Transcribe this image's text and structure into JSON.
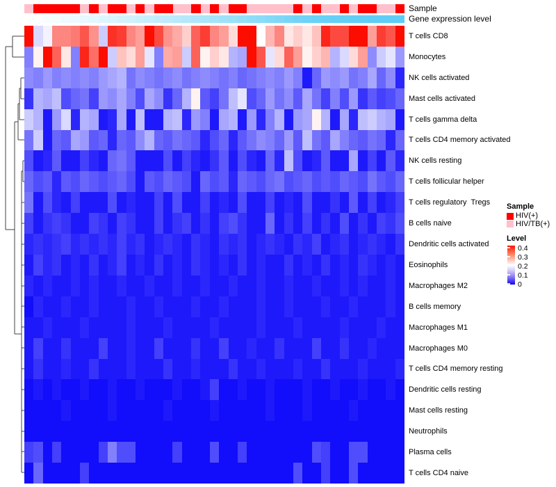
{
  "figure": {
    "annotation_labels": {
      "sample": "Sample",
      "gene_expression": "Gene expression level"
    }
  },
  "legend": {
    "sample": {
      "title": "Sample",
      "entries": [
        {
          "label": "HIV(+)",
          "color": "#FF0000"
        },
        {
          "label": "HIV/TB(+)",
          "color": "#FFC0CB"
        }
      ]
    },
    "level": {
      "title": "Level",
      "ticks": [
        "0.4",
        "0.3",
        "0.2",
        "0.1",
        "0"
      ]
    }
  },
  "chart_data": {
    "type": "heatmap",
    "title": "",
    "rows": [
      "T cells CD8",
      "Monocytes",
      "NK cells activated",
      "Mast cells activated",
      "T cells gamma delta",
      "T cells CD4 memory activated",
      "NK cells resting",
      "T cells follicular helper",
      "T cells regulatory  Tregs",
      "B cells naive",
      "Dendritic cells activated",
      "Eosinophils",
      "Macrophages M2",
      "B cells memory",
      "Macrophages M1",
      "Macrophages M0",
      "T cells CD4 memory resting",
      "Dendritic cells resting",
      "Mast cells resting",
      "Neutrophils",
      "Plasma cells",
      "T cells CD4 naive"
    ],
    "n_columns": 41,
    "row_dendrogram": true,
    "legend_position": "right",
    "colormap": {
      "low": "#0500FA",
      "mid": "#FFFFFF",
      "high": "#FB0D00",
      "domain": [
        0,
        0.2,
        0.4
      ]
    },
    "value_range": [
      0,
      0.45
    ],
    "column_annotations": {
      "sample": [
        "HIV/TB(+)",
        "HIV(+)",
        "HIV(+)",
        "HIV(+)",
        "HIV(+)",
        "HIV(+)",
        "HIV/TB(+)",
        "HIV(+)",
        "HIV/TB(+)",
        "HIV(+)",
        "HIV(+)",
        "HIV/TB(+)",
        "HIV(+)",
        "HIV/TB(+)",
        "HIV(+)",
        "HIV(+)",
        "HIV/TB(+)",
        "HIV/TB(+)",
        "HIV(+)",
        "HIV/TB(+)",
        "HIV(+)",
        "HIV/TB(+)",
        "HIV(+)",
        "HIV(+)",
        "HIV/TB(+)",
        "HIV/TB(+)",
        "HIV/TB(+)",
        "HIV/TB(+)",
        "HIV/TB(+)",
        "HIV(+)",
        "HIV/TB(+)",
        "HIV(+)",
        "HIV/TB(+)",
        "HIV/TB(+)",
        "HIV(+)",
        "HIV/TB(+)",
        "HIV(+)",
        "HIV(+)",
        "HIV/TB(+)",
        "HIV/TB(+)",
        "HIV(+)"
      ],
      "gene_expression_level": [
        0.0,
        0.02,
        0.05,
        0.07,
        0.1,
        0.12,
        0.15,
        0.17,
        0.2,
        0.23,
        0.26,
        0.29,
        0.32,
        0.35,
        0.38,
        0.41,
        0.44,
        0.47,
        0.5,
        0.53,
        0.56,
        0.6,
        0.63,
        0.66,
        0.7,
        0.73,
        0.77,
        0.8,
        0.84,
        0.88,
        0.91,
        0.93,
        0.95,
        0.96,
        0.97,
        0.98,
        0.99,
        1.0,
        1.0,
        1.0,
        1.0
      ],
      "gene_expression_low_color": "#FFFFFF",
      "gene_expression_high_color": "#5FCDF5"
    },
    "matrix": [
      [
        0.42,
        0.17,
        0.19,
        0.3,
        0.3,
        0.31,
        0.34,
        0.29,
        0.16,
        0.37,
        0.36,
        0.3,
        0.28,
        0.42,
        0.35,
        0.29,
        0.27,
        0.24,
        0.33,
        0.36,
        0.3,
        0.28,
        0.23,
        0.45,
        0.45,
        0.2,
        0.26,
        0.3,
        0.22,
        0.24,
        0.22,
        0.25,
        0.38,
        0.35,
        0.35,
        0.43,
        0.43,
        0.28,
        0.36,
        0.34,
        0.44
      ],
      [
        0.1,
        0.21,
        0.42,
        0.33,
        0.22,
        0.1,
        0.38,
        0.32,
        0.42,
        0.16,
        0.25,
        0.23,
        0.28,
        0.18,
        0.1,
        0.27,
        0.28,
        0.16,
        0.33,
        0.21,
        0.24,
        0.22,
        0.14,
        0.13,
        0.42,
        0.34,
        0.18,
        0.23,
        0.33,
        0.28,
        0.21,
        0.24,
        0.26,
        0.14,
        0.17,
        0.23,
        0.28,
        0.11,
        0.16,
        0.18,
        0.12
      ],
      [
        0.11,
        0.1,
        0.12,
        0.1,
        0.11,
        0.1,
        0.11,
        0.1,
        0.12,
        0.13,
        0.14,
        0.09,
        0.11,
        0.1,
        0.09,
        0.1,
        0.11,
        0.09,
        0.1,
        0.11,
        0.1,
        0.09,
        0.1,
        0.08,
        0.09,
        0.1,
        0.11,
        0.1,
        0.12,
        0.1,
        0.02,
        0.08,
        0.12,
        0.11,
        0.12,
        0.09,
        0.1,
        0.13,
        0.08,
        0.11,
        0.03
      ],
      [
        0.04,
        0.14,
        0.13,
        0.15,
        0.06,
        0.08,
        0.09,
        0.05,
        0.12,
        0.11,
        0.13,
        0.1,
        0.06,
        0.13,
        0.11,
        0.04,
        0.08,
        0.14,
        0.21,
        0.07,
        0.05,
        0.09,
        0.15,
        0.18,
        0.06,
        0.08,
        0.12,
        0.09,
        0.11,
        0.07,
        0.13,
        0.09,
        0.05,
        0.1,
        0.06,
        0.12,
        0.04,
        0.07,
        0.05,
        0.06,
        0.08
      ],
      [
        0.16,
        0.14,
        0.02,
        0.12,
        0.17,
        0.03,
        0.14,
        0.13,
        0.02,
        0.03,
        0.13,
        0.02,
        0.15,
        0.02,
        0.02,
        0.14,
        0.15,
        0.03,
        0.12,
        0.1,
        0.02,
        0.13,
        0.14,
        0.02,
        0.12,
        0.03,
        0.1,
        0.14,
        0.02,
        0.12,
        0.13,
        0.21,
        0.14,
        0.02,
        0.13,
        0.03,
        0.15,
        0.16,
        0.14,
        0.13,
        0.02
      ],
      [
        0.09,
        0.16,
        0.02,
        0.08,
        0.07,
        0.13,
        0.12,
        0.07,
        0.08,
        0.03,
        0.08,
        0.07,
        0.11,
        0.14,
        0.08,
        0.07,
        0.09,
        0.08,
        0.07,
        0.03,
        0.06,
        0.08,
        0.03,
        0.07,
        0.09,
        0.11,
        0.1,
        0.08,
        0.12,
        0.07,
        0.15,
        0.09,
        0.07,
        0.13,
        0.1,
        0.08,
        0.07,
        0.09,
        0.08,
        0.03,
        0.08
      ],
      [
        0.06,
        0.02,
        0.03,
        0.07,
        0.02,
        0.02,
        0.05,
        0.03,
        0.02,
        0.08,
        0.09,
        0.07,
        0.02,
        0.02,
        0.02,
        0.06,
        0.02,
        0.05,
        0.03,
        0.02,
        0.04,
        0.07,
        0.02,
        0.06,
        0.03,
        0.02,
        0.08,
        0.03,
        0.15,
        0.06,
        0.02,
        0.03,
        0.07,
        0.02,
        0.02,
        0.13,
        0.02,
        0.05,
        0.02,
        0.07,
        0.03
      ],
      [
        0.08,
        0.06,
        0.07,
        0.03,
        0.07,
        0.06,
        0.08,
        0.07,
        0.06,
        0.07,
        0.08,
        0.06,
        0.02,
        0.07,
        0.06,
        0.08,
        0.07,
        0.06,
        0.02,
        0.08,
        0.06,
        0.07,
        0.03,
        0.08,
        0.07,
        0.06,
        0.08,
        0.09,
        0.06,
        0.07,
        0.08,
        0.06,
        0.07,
        0.06,
        0.08,
        0.07,
        0.06,
        0.09,
        0.07,
        0.06,
        0.08
      ],
      [
        0.09,
        0.02,
        0.06,
        0.03,
        0.02,
        0.05,
        0.02,
        0.02,
        0.02,
        0.06,
        0.02,
        0.03,
        0.02,
        0.02,
        0.05,
        0.02,
        0.06,
        0.02,
        0.02,
        0.05,
        0.02,
        0.03,
        0.02,
        0.06,
        0.02,
        0.02,
        0.05,
        0.02,
        0.03,
        0.02,
        0.06,
        0.02,
        0.02,
        0.04,
        0.02,
        0.07,
        0.02,
        0.05,
        0.02,
        0.03,
        0.05
      ],
      [
        0.05,
        0.02,
        0.04,
        0.05,
        0.04,
        0.02,
        0.02,
        0.05,
        0.04,
        0.02,
        0.05,
        0.04,
        0.02,
        0.02,
        0.05,
        0.02,
        0.04,
        0.05,
        0.02,
        0.04,
        0.02,
        0.05,
        0.06,
        0.04,
        0.02,
        0.02,
        0.08,
        0.02,
        0.04,
        0.02,
        0.05,
        0.02,
        0.04,
        0.02,
        0.06,
        0.02,
        0.04,
        0.02,
        0.05,
        0.04,
        0.06
      ],
      [
        0.03,
        0.04,
        0.03,
        0.04,
        0.05,
        0.03,
        0.04,
        0.03,
        0.04,
        0.03,
        0.05,
        0.03,
        0.04,
        0.02,
        0.03,
        0.04,
        0.03,
        0.02,
        0.04,
        0.03,
        0.02,
        0.04,
        0.03,
        0.04,
        0.02,
        0.03,
        0.04,
        0.03,
        0.02,
        0.04,
        0.03,
        0.05,
        0.02,
        0.03,
        0.04,
        0.02,
        0.03,
        0.04,
        0.03,
        0.02,
        0.04
      ],
      [
        0.02,
        0.05,
        0.03,
        0.04,
        0.02,
        0.03,
        0.02,
        0.04,
        0.02,
        0.03,
        0.05,
        0.02,
        0.03,
        0.02,
        0.04,
        0.02,
        0.03,
        0.02,
        0.04,
        0.03,
        0.02,
        0.03,
        0.02,
        0.04,
        0.02,
        0.03,
        0.02,
        0.02,
        0.04,
        0.02,
        0.03,
        0.02,
        0.04,
        0.02,
        0.03,
        0.02,
        0.04,
        0.03,
        0.02,
        0.03,
        0.02
      ],
      [
        0.03,
        0.02,
        0.03,
        0.02,
        0.02,
        0.03,
        0.02,
        0.03,
        0.02,
        0.02,
        0.03,
        0.02,
        0.02,
        0.03,
        0.02,
        0.02,
        0.03,
        0.02,
        0.02,
        0.03,
        0.02,
        0.02,
        0.03,
        0.02,
        0.02,
        0.03,
        0.02,
        0.02,
        0.03,
        0.02,
        0.02,
        0.03,
        0.02,
        0.02,
        0.03,
        0.02,
        0.03,
        0.02,
        0.02,
        0.03,
        0.02
      ],
      [
        0.01,
        0.03,
        0.02,
        0.02,
        0.03,
        0.02,
        0.02,
        0.03,
        0.02,
        0.02,
        0.02,
        0.03,
        0.02,
        0.02,
        0.03,
        0.02,
        0.02,
        0.02,
        0.03,
        0.02,
        0.02,
        0.03,
        0.02,
        0.02,
        0.02,
        0.03,
        0.02,
        0.02,
        0.03,
        0.02,
        0.02,
        0.02,
        0.03,
        0.02,
        0.02,
        0.03,
        0.02,
        0.02,
        0.02,
        0.03,
        0.02
      ],
      [
        0.02,
        0.02,
        0.03,
        0.02,
        0.02,
        0.02,
        0.03,
        0.02,
        0.02,
        0.02,
        0.02,
        0.03,
        0.02,
        0.02,
        0.02,
        0.03,
        0.02,
        0.02,
        0.02,
        0.02,
        0.03,
        0.02,
        0.02,
        0.02,
        0.02,
        0.03,
        0.02,
        0.02,
        0.02,
        0.03,
        0.02,
        0.02,
        0.02,
        0.02,
        0.03,
        0.02,
        0.02,
        0.02,
        0.03,
        0.02,
        0.02
      ],
      [
        0.02,
        0.05,
        0.02,
        0.02,
        0.04,
        0.02,
        0.02,
        0.02,
        0.05,
        0.02,
        0.02,
        0.03,
        0.02,
        0.02,
        0.05,
        0.02,
        0.02,
        0.02,
        0.04,
        0.02,
        0.02,
        0.05,
        0.02,
        0.02,
        0.03,
        0.02,
        0.02,
        0.04,
        0.02,
        0.02,
        0.02,
        0.05,
        0.02,
        0.02,
        0.04,
        0.02,
        0.02,
        0.03,
        0.02,
        0.02,
        0.02
      ],
      [
        0.02,
        0.04,
        0.02,
        0.02,
        0.03,
        0.02,
        0.02,
        0.04,
        0.02,
        0.02,
        0.02,
        0.03,
        0.02,
        0.02,
        0.02,
        0.04,
        0.02,
        0.02,
        0.03,
        0.02,
        0.02,
        0.02,
        0.04,
        0.02,
        0.02,
        0.03,
        0.02,
        0.02,
        0.02,
        0.03,
        0.02,
        0.02,
        0.04,
        0.02,
        0.02,
        0.02,
        0.03,
        0.02,
        0.02,
        0.02,
        0.03
      ],
      [
        0.01,
        0.02,
        0.01,
        0.02,
        0.01,
        0.01,
        0.02,
        0.01,
        0.01,
        0.02,
        0.01,
        0.01,
        0.02,
        0.01,
        0.01,
        0.01,
        0.02,
        0.01,
        0.01,
        0.02,
        0.05,
        0.01,
        0.01,
        0.02,
        0.01,
        0.01,
        0.02,
        0.01,
        0.01,
        0.01,
        0.02,
        0.01,
        0.01,
        0.02,
        0.01,
        0.01,
        0.02,
        0.01,
        0.01,
        0.02,
        0.01
      ],
      [
        0.01,
        0.01,
        0.01,
        0.01,
        0.02,
        0.01,
        0.01,
        0.01,
        0.01,
        0.02,
        0.01,
        0.01,
        0.01,
        0.01,
        0.01,
        0.02,
        0.01,
        0.01,
        0.01,
        0.01,
        0.02,
        0.01,
        0.01,
        0.01,
        0.01,
        0.01,
        0.02,
        0.01,
        0.01,
        0.01,
        0.02,
        0.01,
        0.01,
        0.01,
        0.01,
        0.02,
        0.01,
        0.01,
        0.01,
        0.01,
        0.01
      ],
      [
        0.01,
        0.01,
        0.01,
        0.01,
        0.01,
        0.01,
        0.01,
        0.01,
        0.01,
        0.01,
        0.01,
        0.01,
        0.01,
        0.01,
        0.01,
        0.01,
        0.01,
        0.01,
        0.01,
        0.01,
        0.01,
        0.01,
        0.01,
        0.01,
        0.01,
        0.01,
        0.01,
        0.01,
        0.01,
        0.01,
        0.01,
        0.01,
        0.01,
        0.01,
        0.01,
        0.01,
        0.01,
        0.01,
        0.01,
        0.01,
        0.01
      ],
      [
        0.05,
        0.06,
        0.01,
        0.05,
        0.01,
        0.01,
        0.01,
        0.01,
        0.05,
        0.1,
        0.06,
        0.06,
        0.01,
        0.01,
        0.01,
        0.01,
        0.05,
        0.01,
        0.01,
        0.01,
        0.06,
        0.01,
        0.01,
        0.05,
        0.01,
        0.01,
        0.01,
        0.01,
        0.01,
        0.01,
        0.01,
        0.06,
        0.05,
        0.01,
        0.01,
        0.06,
        0.06,
        0.01,
        0.01,
        0.01,
        0.01
      ],
      [
        0.01,
        0.08,
        0.01,
        0.01,
        0.01,
        0.01,
        0.05,
        0.01,
        0.01,
        0.01,
        0.01,
        0.01,
        0.01,
        0.01,
        0.01,
        0.01,
        0.01,
        0.01,
        0.01,
        0.01,
        0.01,
        0.01,
        0.01,
        0.01,
        0.01,
        0.01,
        0.01,
        0.01,
        0.01,
        0.06,
        0.01,
        0.01,
        0.05,
        0.01,
        0.01,
        0.06,
        0.01,
        0.01,
        0.01,
        0.01,
        0.01
      ]
    ]
  }
}
